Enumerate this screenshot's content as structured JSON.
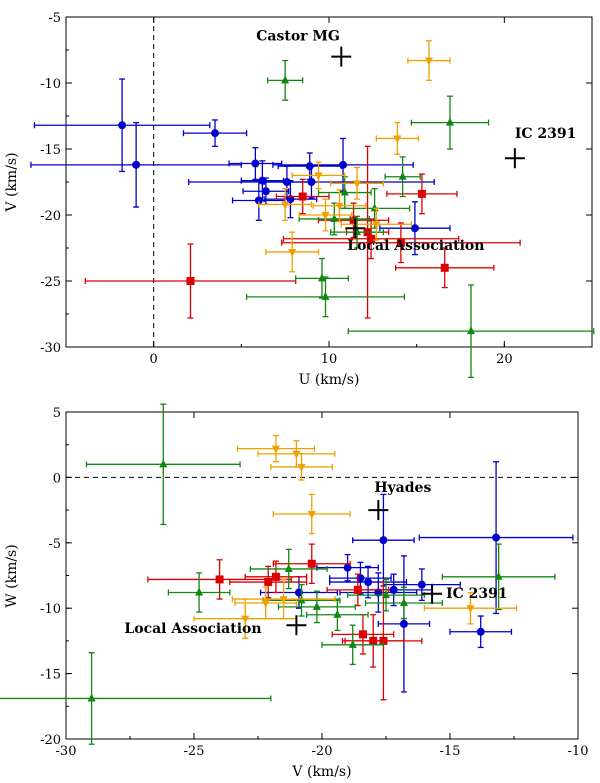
{
  "chart_data": [
    {
      "type": "scatter",
      "xlabel": "U (km/s)",
      "ylabel": "V (km/s)",
      "xlim": [
        -5,
        25
      ],
      "ylim": [
        -30,
        -5
      ],
      "xticks": [
        0,
        10,
        20
      ],
      "yticks": [
        -30,
        -25,
        -20,
        -15,
        -10,
        -5
      ],
      "ref_lines": [
        {
          "orient": "vertical",
          "value": 0
        }
      ],
      "groups": {
        "A": {
          "name": "circle-blue",
          "color": "#0000cc",
          "marker": "circle"
        },
        "B": {
          "name": "square-red",
          "color": "#dd0000",
          "marker": "square"
        },
        "C": {
          "name": "triangle-up-green",
          "color": "#118811",
          "marker": "triangle-up"
        },
        "D": {
          "name": "triangle-down-orange",
          "color": "#f0a000",
          "marker": "triangle-down"
        }
      },
      "points": [
        {
          "g": "A",
          "x": -1.8,
          "y": -13.2,
          "xe": 5,
          "ye": 3.5
        },
        {
          "g": "A",
          "x": -1.0,
          "y": -16.2,
          "xe": 6,
          "ye": 3.2
        },
        {
          "g": "A",
          "x": 3.5,
          "y": -13.8,
          "xe": 1.8,
          "ye": 1.0
        },
        {
          "g": "A",
          "x": 5.8,
          "y": -16.1,
          "xe": 1.5,
          "ye": 1.2
        },
        {
          "g": "A",
          "x": 6.2,
          "y": -17.4,
          "xe": 1.2,
          "ye": 1.5
        },
        {
          "g": "A",
          "x": 6.0,
          "y": -18.9,
          "xe": 1.5,
          "ye": 1.5
        },
        {
          "g": "A",
          "x": 6.4,
          "y": -18.2,
          "xe": 1.3,
          "ye": 1.0
        },
        {
          "g": "A",
          "x": 7.6,
          "y": -17.5,
          "xe": 1.3,
          "ye": 1.2
        },
        {
          "g": "A",
          "x": 7.8,
          "y": -18.8,
          "xe": 1.5,
          "ye": 1.4
        },
        {
          "g": "A",
          "x": 8.9,
          "y": -16.3,
          "xe": 1.8,
          "ye": 1.0
        },
        {
          "g": "A",
          "x": 10.8,
          "y": -16.2,
          "xe": 4.0,
          "ye": 2.0
        },
        {
          "g": "A",
          "x": 14.9,
          "y": -21.0,
          "xe": 2.0,
          "ye": 2.0
        },
        {
          "g": "A",
          "x": 9.0,
          "y": -17.5,
          "xe": 7.0,
          "ye": 1.2
        },
        {
          "g": "B",
          "x": 2.1,
          "y": -25.0,
          "xe": 6.0,
          "ye": 2.8
        },
        {
          "g": "B",
          "x": 8.5,
          "y": -18.6,
          "xe": 1.5,
          "ye": 1.3
        },
        {
          "g": "B",
          "x": 11.4,
          "y": -20.4,
          "xe": 2.0,
          "ye": 1.3
        },
        {
          "g": "B",
          "x": 12.4,
          "y": -21.8,
          "xe": 5.0,
          "ye": 1.5
        },
        {
          "g": "B",
          "x": 14.1,
          "y": -22.1,
          "xe": 6.8,
          "ye": 1.5
        },
        {
          "g": "B",
          "x": 15.3,
          "y": -18.4,
          "xe": 2.0,
          "ye": 1.5
        },
        {
          "g": "B",
          "x": 16.6,
          "y": -24.0,
          "xe": 2.8,
          "ye": 1.5
        },
        {
          "g": "B",
          "x": 12.2,
          "y": -21.3,
          "xe": 1.2,
          "ye": 6.5
        },
        {
          "g": "C",
          "x": 7.5,
          "y": -9.8,
          "xe": 1.0,
          "ye": 1.5
        },
        {
          "g": "C",
          "x": 16.9,
          "y": -13.0,
          "xe": 2.2,
          "ye": 2.0
        },
        {
          "g": "C",
          "x": 9.6,
          "y": -24.8,
          "xe": 1.5,
          "ye": 1.5
        },
        {
          "g": "C",
          "x": 9.8,
          "y": -26.2,
          "xe": 4.5,
          "ye": 1.5
        },
        {
          "g": "C",
          "x": 18.1,
          "y": -28.8,
          "xe": 7.0,
          "ye": 3.5
        },
        {
          "g": "C",
          "x": 14.2,
          "y": -17.1,
          "xe": 1.0,
          "ye": 1.5
        },
        {
          "g": "C",
          "x": 12.6,
          "y": -19.5,
          "xe": 2.0,
          "ye": 1.5
        },
        {
          "g": "C",
          "x": 10.3,
          "y": -20.3,
          "xe": 2.0,
          "ye": 1.2
        },
        {
          "g": "C",
          "x": 11.6,
          "y": -21.3,
          "xe": 1.5,
          "ye": 1.2
        },
        {
          "g": "C",
          "x": 10.9,
          "y": -18.3,
          "xe": 1.5,
          "ye": 1.2
        },
        {
          "g": "D",
          "x": 15.7,
          "y": -8.3,
          "xe": 1.2,
          "ye": 1.5
        },
        {
          "g": "D",
          "x": 13.9,
          "y": -14.2,
          "xe": 1.2,
          "ye": 1.2
        },
        {
          "g": "D",
          "x": 7.5,
          "y": -19.2,
          "xe": 1.5,
          "ye": 1.2
        },
        {
          "g": "D",
          "x": 7.9,
          "y": -22.8,
          "xe": 1.5,
          "ye": 1.5
        },
        {
          "g": "D",
          "x": 9.8,
          "y": -20.0,
          "xe": 1.5,
          "ye": 1.2
        },
        {
          "g": "D",
          "x": 10.6,
          "y": -19.3,
          "xe": 1.5,
          "ye": 1.2
        },
        {
          "g": "D",
          "x": 11.6,
          "y": -17.6,
          "xe": 1.5,
          "ye": 1.2
        },
        {
          "g": "D",
          "x": 12.7,
          "y": -20.7,
          "xe": 2.0,
          "ye": 1.2
        },
        {
          "g": "D",
          "x": 9.4,
          "y": -17.0,
          "xe": 1.5,
          "ye": 1.0
        }
      ],
      "crosses": [
        {
          "label": "Castor MG",
          "x": 10.7,
          "y": -8.0
        },
        {
          "label": "IC 2391",
          "x": 20.6,
          "y": -15.7
        },
        {
          "label": "Local Association",
          "x": 11.5,
          "y": -21.0
        }
      ]
    },
    {
      "type": "scatter",
      "xlabel": "V (km/s)",
      "ylabel": "W (km/s)",
      "xlim": [
        -30,
        -10
      ],
      "ylim": [
        -20,
        5
      ],
      "xticks": [
        -30,
        -25,
        -20,
        -15,
        -10
      ],
      "yticks": [
        -20,
        -15,
        -10,
        -5,
        0,
        5
      ],
      "ref_lines": [
        {
          "orient": "horizontal",
          "value": 0
        }
      ],
      "groups": {
        "A": {
          "name": "circle-blue",
          "color": "#0000cc",
          "marker": "circle"
        },
        "B": {
          "name": "square-red",
          "color": "#dd0000",
          "marker": "square"
        },
        "C": {
          "name": "triangle-up-green",
          "color": "#118811",
          "marker": "triangle-up"
        },
        "D": {
          "name": "triangle-down-orange",
          "color": "#f0a000",
          "marker": "triangle-down"
        }
      },
      "points": [
        {
          "g": "A",
          "x": -13.2,
          "y": -4.6,
          "xe": 3.0,
          "ye": 5.8
        },
        {
          "g": "A",
          "x": -13.8,
          "y": -11.8,
          "xe": 1.2,
          "ye": 1.2
        },
        {
          "g": "A",
          "x": -16.8,
          "y": -11.2,
          "xe": 1.0,
          "ye": 5.2
        },
        {
          "g": "A",
          "x": -17.6,
          "y": -4.8,
          "xe": 1.2,
          "ye": 3.5
        },
        {
          "g": "A",
          "x": -17.8,
          "y": -8.8,
          "xe": 1.5,
          "ye": 1.5
        },
        {
          "g": "A",
          "x": -18.2,
          "y": -8.0,
          "xe": 1.5,
          "ye": 1.2
        },
        {
          "g": "A",
          "x": -19.0,
          "y": -6.9,
          "xe": 1.2,
          "ye": 1.0
        },
        {
          "g": "A",
          "x": -18.5,
          "y": -7.7,
          "xe": 1.2,
          "ye": 1.2
        },
        {
          "g": "A",
          "x": -16.1,
          "y": -8.2,
          "xe": 1.5,
          "ye": 1.2
        },
        {
          "g": "A",
          "x": -20.9,
          "y": -8.8,
          "xe": 1.5,
          "ye": 1.2
        },
        {
          "g": "A",
          "x": -17.2,
          "y": -8.6,
          "xe": 1.5,
          "ye": 1.2
        },
        {
          "g": "B",
          "x": -24.0,
          "y": -7.8,
          "xe": 2.8,
          "ye": 1.5
        },
        {
          "g": "B",
          "x": -22.1,
          "y": -8.0,
          "xe": 1.5,
          "ye": 1.2
        },
        {
          "g": "B",
          "x": -20.4,
          "y": -6.6,
          "xe": 1.5,
          "ye": 1.5
        },
        {
          "g": "B",
          "x": -21.8,
          "y": -7.6,
          "xe": 1.2,
          "ye": 1.2
        },
        {
          "g": "B",
          "x": -18.4,
          "y": -12.0,
          "xe": 1.2,
          "ye": 1.5
        },
        {
          "g": "B",
          "x": -18.0,
          "y": -12.5,
          "xe": 1.2,
          "ye": 2.0
        },
        {
          "g": "B",
          "x": -18.6,
          "y": -8.6,
          "xe": 1.2,
          "ye": 1.2
        },
        {
          "g": "B",
          "x": -17.6,
          "y": -12.5,
          "xe": 1.5,
          "ye": 4.5
        },
        {
          "g": "C",
          "x": -26.2,
          "y": 1.0,
          "xe": 3.0,
          "ye": 4.6
        },
        {
          "g": "C",
          "x": -29.0,
          "y": -16.9,
          "xe": 7.0,
          "ye": 3.5
        },
        {
          "g": "C",
          "x": -24.8,
          "y": -8.8,
          "xe": 1.2,
          "ye": 1.5
        },
        {
          "g": "C",
          "x": -13.1,
          "y": -7.6,
          "xe": 2.2,
          "ye": 2.5
        },
        {
          "g": "C",
          "x": -21.3,
          "y": -7.0,
          "xe": 1.5,
          "ye": 1.5
        },
        {
          "g": "C",
          "x": -20.2,
          "y": -9.9,
          "xe": 1.5,
          "ye": 1.2
        },
        {
          "g": "C",
          "x": -19.4,
          "y": -10.5,
          "xe": 1.2,
          "ye": 1.2
        },
        {
          "g": "C",
          "x": -16.8,
          "y": -9.6,
          "xe": 1.5,
          "ye": 1.2
        },
        {
          "g": "C",
          "x": -18.8,
          "y": -12.8,
          "xe": 1.2,
          "ye": 1.5
        },
        {
          "g": "C",
          "x": -17.5,
          "y": -9.0,
          "xe": 1.5,
          "ye": 1.2
        },
        {
          "g": "C",
          "x": -20.8,
          "y": -9.4,
          "xe": 1.5,
          "ye": 1.2
        },
        {
          "g": "D",
          "x": -21.8,
          "y": 2.2,
          "xe": 1.5,
          "ye": 1.0
        },
        {
          "g": "D",
          "x": -21.0,
          "y": 1.8,
          "xe": 1.5,
          "ye": 1.0
        },
        {
          "g": "D",
          "x": -20.8,
          "y": 0.8,
          "xe": 1.2,
          "ye": 1.0
        },
        {
          "g": "D",
          "x": -20.4,
          "y": -2.8,
          "xe": 1.5,
          "ye": 1.5
        },
        {
          "g": "D",
          "x": -23.0,
          "y": -10.8,
          "xe": 2.0,
          "ye": 1.5
        },
        {
          "g": "D",
          "x": -22.2,
          "y": -9.6,
          "xe": 1.2,
          "ye": 1.2
        },
        {
          "g": "D",
          "x": -14.2,
          "y": -10.0,
          "xe": 1.8,
          "ye": 1.2
        },
        {
          "g": "D",
          "x": -21.5,
          "y": -9.3,
          "xe": 2.0,
          "ye": 1.5
        }
      ],
      "crosses": [
        {
          "label": "Hyades",
          "x": -17.8,
          "y": -2.5
        },
        {
          "label": "IC 2391",
          "x": -15.7,
          "y": -8.9
        },
        {
          "label": "Local Association",
          "x": -21.0,
          "y": -11.3
        }
      ]
    }
  ]
}
